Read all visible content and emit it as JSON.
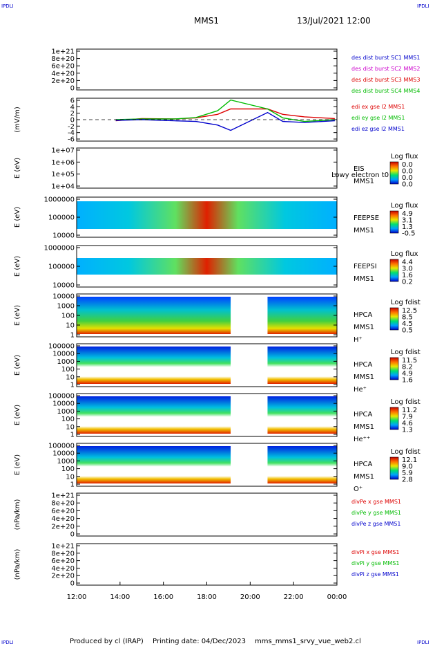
{
  "corners": {
    "label": "IPDLI"
  },
  "header": {
    "spacecraft": "MMS1",
    "datetime": "13/Jul/2021 12:00"
  },
  "xaxis": {
    "ticks": [
      "12:00",
      "14:00",
      "16:00",
      "18:00",
      "20:00",
      "22:00",
      "00:00"
    ]
  },
  "footer": {
    "produced": "Produced by cl (IRAP)",
    "printing": "Printing date: 04/Dec/2023",
    "file": "mms_mms1_srvy_vue_web2.cl"
  },
  "colors": {
    "red": "#dd0000",
    "green": "#00bb00",
    "blue": "#0000cc",
    "magenta": "#cc00cc",
    "grid": "#000000"
  },
  "chart_data": [
    {
      "type": "line",
      "id": "panel1",
      "ylabel": "",
      "ylim": [
        0,
        1e+21
      ],
      "ticks": [
        "1e+21",
        "8e+20",
        "6e+20",
        "4e+20",
        "2e+20",
        "0"
      ],
      "legend": [
        {
          "text": "des dist burst SC1 MMS1",
          "color": "#0000cc"
        },
        {
          "text": "des dist burst SC2 MMS2",
          "color": "#cc00cc"
        },
        {
          "text": "des dist burst SC3 MMS3",
          "color": "#dd0000"
        },
        {
          "text": "des dist burst SC4 MMS4",
          "color": "#00bb00"
        }
      ],
      "series": []
    },
    {
      "type": "line",
      "id": "panel2",
      "ylabel": "(mV/m)",
      "ylim": [
        -6,
        6
      ],
      "ticks": [
        "6",
        "4",
        "2",
        "0",
        "-2",
        "-4",
        "-6"
      ],
      "legend": [
        {
          "text": "edi ex gse l2 MMS1",
          "color": "#dd0000"
        },
        {
          "text": "edi ey gse l2 MMS1",
          "color": "#00bb00"
        },
        {
          "text": "edi ez gse l2 MMS1",
          "color": "#0000cc"
        }
      ],
      "series": [
        {
          "name": "edi ex gse l2 MMS1",
          "color": "#dd0000",
          "x": [
            13.8,
            15,
            16.5,
            17.5,
            18.5,
            19.1,
            20.8,
            21.5,
            22.5,
            23.9
          ],
          "y": [
            -0.3,
            0.3,
            0.2,
            0.5,
            1.5,
            3,
            3,
            1.5,
            0.8,
            0.3
          ]
        },
        {
          "name": "edi ey gse l2 MMS1",
          "color": "#00bb00",
          "x": [
            13.8,
            15,
            16.5,
            17.5,
            18.5,
            19.1,
            20.8,
            21.5,
            22.5,
            23.9
          ],
          "y": [
            0,
            0.2,
            0.2,
            0.6,
            2.5,
            5.5,
            3,
            0.5,
            -0.5,
            0
          ]
        },
        {
          "name": "edi ez gse l2 MMS1",
          "color": "#0000cc",
          "x": [
            13.8,
            15,
            16.5,
            17.5,
            18.5,
            19.1,
            20.8,
            21.5,
            22.5,
            23.9
          ],
          "y": [
            -0.2,
            0,
            -0.3,
            -0.5,
            -1.5,
            -3,
            2,
            -0.5,
            -0.8,
            -0.3
          ]
        }
      ]
    },
    {
      "type": "heatmap",
      "id": "panel3",
      "ylabel": "E (eV)",
      "ticks": [
        "1e+07",
        "1e+06",
        "1e+05",
        "1e+04"
      ],
      "side": [
        "EIS",
        "MMS1"
      ],
      "overlay": "Lowy electron t0",
      "colorbar": {
        "title": "Log flux",
        "values": [
          "0.0",
          "0.0",
          "0.0",
          "0.0"
        ]
      }
    },
    {
      "type": "heatmap",
      "id": "panel4",
      "ylabel": "E (eV)",
      "ticks": [
        "1000000",
        "100000",
        "10000"
      ],
      "side": [
        "FEEPSE",
        "MMS1"
      ],
      "colorbar": {
        "title": "Log flux",
        "values": [
          "4.9",
          "3.1",
          "1.3",
          "-0.5"
        ]
      }
    },
    {
      "type": "heatmap",
      "id": "panel5",
      "ylabel": "E (eV)",
      "ticks": [
        "1000000",
        "100000",
        "10000"
      ],
      "side": [
        "FEEPSI",
        "MMS1"
      ],
      "colorbar": {
        "title": "Log flux",
        "values": [
          "4.4",
          "3.0",
          "1.6",
          "0.2"
        ]
      }
    },
    {
      "type": "heatmap",
      "id": "panel6",
      "ylabel": "E (eV)",
      "ticks": [
        "10000",
        "1000",
        "100",
        "10",
        "1"
      ],
      "side": [
        "HPCA",
        "MMS1",
        "H⁺"
      ],
      "colorbar": {
        "title": "Log fdist",
        "values": [
          "12.5",
          "8.5",
          "4.5",
          "0.5"
        ]
      }
    },
    {
      "type": "heatmap",
      "id": "panel7",
      "ylabel": "E (eV)",
      "ticks": [
        "100000",
        "10000",
        "1000",
        "100",
        "10",
        "1"
      ],
      "side": [
        "HPCA",
        "MMS1",
        "He⁺"
      ],
      "colorbar": {
        "title": "Log fdist",
        "values": [
          "11.5",
          "8.2",
          "4.9",
          "1.6"
        ]
      }
    },
    {
      "type": "heatmap",
      "id": "panel8",
      "ylabel": "E (eV)",
      "ticks": [
        "100000",
        "10000",
        "1000",
        "100",
        "10",
        "1"
      ],
      "side": [
        "HPCA",
        "MMS1",
        "He⁺⁺"
      ],
      "colorbar": {
        "title": "Log fdist",
        "values": [
          "11.2",
          "7.9",
          "4.6",
          "1.3"
        ]
      }
    },
    {
      "type": "heatmap",
      "id": "panel9",
      "ylabel": "E (eV)",
      "ticks": [
        "100000",
        "10000",
        "1000",
        "100",
        "10",
        "1"
      ],
      "side": [
        "HPCA",
        "MMS1",
        "O⁺"
      ],
      "colorbar": {
        "title": "Log fdist",
        "values": [
          "12.1",
          "9.0",
          "5.9",
          "2.8"
        ]
      }
    },
    {
      "type": "line",
      "id": "panel10",
      "ylabel": "(nPa/km)",
      "ylim": [
        0,
        1e+21
      ],
      "ticks": [
        "1e+21",
        "8e+20",
        "6e+20",
        "4e+20",
        "2e+20",
        "0"
      ],
      "legend": [
        {
          "text": "divPe x gse MMS1",
          "color": "#dd0000"
        },
        {
          "text": "divPe y gse MMS1",
          "color": "#00bb00"
        },
        {
          "text": "divPe z gse MMS1",
          "color": "#0000cc"
        }
      ],
      "series": []
    },
    {
      "type": "line",
      "id": "panel11",
      "ylabel": "(nPa/km)",
      "ylim": [
        0,
        1e+21
      ],
      "ticks": [
        "1e+21",
        "8e+20",
        "6e+20",
        "4e+20",
        "2e+20",
        "0"
      ],
      "legend": [
        {
          "text": "divPi x gse MMS1",
          "color": "#dd0000"
        },
        {
          "text": "divPi y gse MMS1",
          "color": "#00bb00"
        },
        {
          "text": "divPi z gse MMS1",
          "color": "#0000cc"
        }
      ],
      "series": []
    }
  ]
}
